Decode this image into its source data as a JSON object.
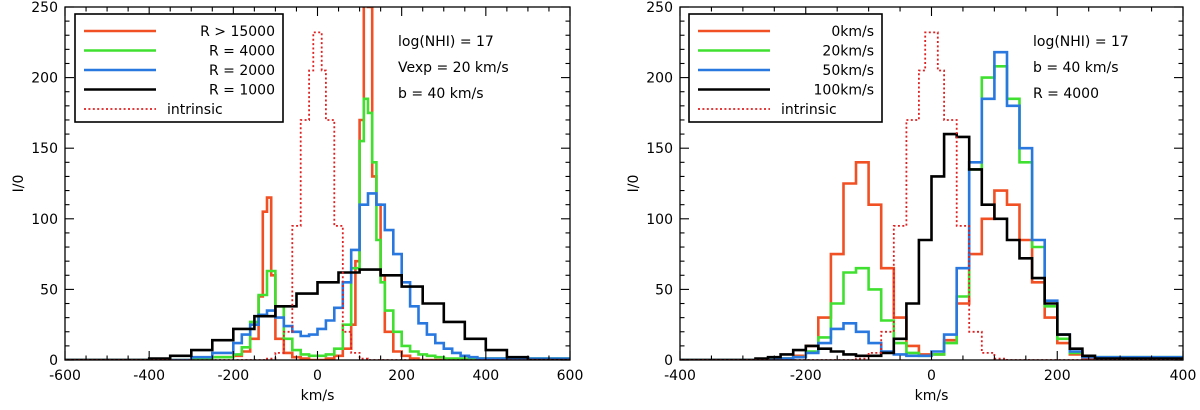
{
  "chart_data": [
    {
      "type": "line",
      "step": true,
      "xlabel": "km/s",
      "ylabel": "I/0",
      "xlim": [
        -600,
        600
      ],
      "ylim": [
        0,
        250
      ],
      "xticks": [
        -600,
        -400,
        -200,
        0,
        200,
        400,
        600
      ],
      "yticks": [
        0,
        50,
        100,
        150,
        200,
        250
      ],
      "xtick_labels": [
        "-600",
        "-400",
        "-200",
        "0",
        "200",
        "400",
        "600"
      ],
      "ytick_labels": [
        "0",
        "50",
        "100",
        "150",
        "200",
        "250"
      ],
      "legend_position": "top-left",
      "annotations": [
        "log(NHI) = 17",
        "Vexp = 20 km/s",
        "b = 40 km/s"
      ],
      "series": [
        {
          "name": "R > 15000",
          "color": "#f05024",
          "style": "solid",
          "x": [
            -600,
            -400,
            -300,
            -250,
            -200,
            -180,
            -160,
            -140,
            -130,
            -120,
            -110,
            -100,
            -80,
            -60,
            -40,
            -20,
            0,
            20,
            40,
            60,
            80,
            90,
            100,
            110,
            120,
            130,
            140,
            150,
            160,
            180,
            200,
            220,
            240,
            400,
            600
          ],
          "y": [
            0,
            0,
            1,
            2,
            3,
            6,
            15,
            45,
            105,
            115,
            60,
            15,
            5,
            2,
            1,
            0,
            0,
            1,
            3,
            8,
            25,
            70,
            170,
            265,
            250,
            130,
            110,
            60,
            20,
            6,
            3,
            1,
            0,
            0,
            0
          ]
        },
        {
          "name": "R = 4000",
          "color": "#40e030",
          "style": "solid",
          "x": [
            -600,
            -400,
            -300,
            -250,
            -200,
            -180,
            -160,
            -140,
            -120,
            -100,
            -80,
            -60,
            -40,
            -20,
            0,
            20,
            40,
            60,
            80,
            100,
            110,
            120,
            130,
            140,
            150,
            160,
            180,
            200,
            220,
            240,
            260,
            280,
            300,
            600
          ],
          "y": [
            0,
            0,
            1,
            2,
            4,
            9,
            27,
            46,
            63,
            38,
            15,
            7,
            4,
            3,
            3,
            4,
            8,
            25,
            65,
            155,
            185,
            175,
            140,
            85,
            55,
            35,
            20,
            10,
            6,
            4,
            3,
            2,
            1,
            0
          ]
        },
        {
          "name": "R = 2000",
          "color": "#2878e0",
          "style": "solid",
          "x": [
            -600,
            -400,
            -300,
            -250,
            -200,
            -180,
            -160,
            -140,
            -120,
            -100,
            -80,
            -60,
            -40,
            -20,
            0,
            20,
            40,
            60,
            80,
            100,
            120,
            140,
            160,
            180,
            200,
            220,
            240,
            260,
            280,
            300,
            320,
            340,
            360,
            380,
            600
          ],
          "y": [
            0,
            0,
            2,
            5,
            12,
            18,
            25,
            32,
            35,
            30,
            24,
            20,
            17,
            18,
            22,
            28,
            37,
            55,
            78,
            110,
            118,
            110,
            92,
            75,
            55,
            38,
            26,
            18,
            12,
            8,
            5,
            3,
            2,
            1,
            0
          ]
        },
        {
          "name": "R = 1000",
          "color": "#000000",
          "style": "solid",
          "x": [
            -600,
            -400,
            -350,
            -300,
            -250,
            -200,
            -150,
            -100,
            -50,
            0,
            50,
            100,
            150,
            200,
            250,
            300,
            350,
            400,
            450,
            500,
            600
          ],
          "y": [
            0,
            1,
            3,
            7,
            14,
            22,
            31,
            38,
            47,
            55,
            62,
            64,
            60,
            52,
            40,
            27,
            15,
            7,
            2,
            0,
            0
          ]
        },
        {
          "name": "intrinsic",
          "color": "#e02020",
          "style": "dotted",
          "x": [
            -600,
            -140,
            -120,
            -100,
            -80,
            -60,
            -40,
            -20,
            -10,
            0,
            10,
            20,
            40,
            60,
            80,
            100,
            120,
            140,
            600
          ],
          "y": [
            0,
            0,
            1,
            5,
            20,
            95,
            170,
            205,
            232,
            232,
            205,
            170,
            95,
            20,
            5,
            1,
            0,
            0,
            0
          ]
        }
      ]
    },
    {
      "type": "line",
      "step": true,
      "xlabel": "km/s",
      "ylabel": "I/0",
      "xlim": [
        -400,
        400
      ],
      "ylim": [
        0,
        250
      ],
      "xticks": [
        -400,
        -200,
        0,
        200,
        400
      ],
      "yticks": [
        0,
        50,
        100,
        150,
        200,
        250
      ],
      "xtick_labels": [
        "-400",
        "-200",
        "0",
        "200",
        "400"
      ],
      "ytick_labels": [
        "0",
        "50",
        "100",
        "150",
        "200",
        "250"
      ],
      "legend_position": "top-left",
      "annotations": [
        "log(NHI) = 17",
        "b = 40 km/s",
        "R = 4000"
      ],
      "series": [
        {
          "name": "0km/s",
          "color": "#f05024",
          "style": "solid",
          "x": [
            -400,
            -250,
            -220,
            -200,
            -180,
            -160,
            -140,
            -120,
            -100,
            -80,
            -60,
            -40,
            -20,
            0,
            20,
            40,
            60,
            80,
            100,
            120,
            140,
            160,
            180,
            200,
            220,
            240,
            400
          ],
          "y": [
            0,
            1,
            3,
            10,
            30,
            75,
            125,
            140,
            110,
            65,
            30,
            10,
            4,
            4,
            14,
            40,
            75,
            100,
            120,
            110,
            85,
            55,
            30,
            12,
            4,
            1,
            0
          ]
        },
        {
          "name": "20km/s",
          "color": "#40e030",
          "style": "solid",
          "x": [
            -400,
            -250,
            -220,
            -200,
            -180,
            -160,
            -140,
            -120,
            -100,
            -80,
            -60,
            -40,
            -20,
            0,
            20,
            40,
            60,
            80,
            100,
            120,
            140,
            160,
            180,
            200,
            220,
            240,
            400
          ],
          "y": [
            0,
            1,
            2,
            6,
            16,
            40,
            62,
            65,
            50,
            28,
            12,
            5,
            3,
            4,
            12,
            45,
            135,
            200,
            208,
            185,
            140,
            80,
            38,
            15,
            5,
            2,
            0
          ]
        },
        {
          "name": "50km/s",
          "color": "#2878e0",
          "style": "solid",
          "x": [
            -400,
            -250,
            -220,
            -200,
            -180,
            -160,
            -140,
            -120,
            -100,
            -80,
            -60,
            -40,
            -20,
            0,
            20,
            40,
            60,
            80,
            100,
            120,
            140,
            160,
            180,
            200,
            220,
            240,
            400
          ],
          "y": [
            0,
            1,
            2,
            5,
            12,
            22,
            26,
            20,
            12,
            6,
            4,
            3,
            3,
            6,
            18,
            65,
            140,
            185,
            218,
            180,
            150,
            85,
            42,
            18,
            6,
            2,
            0
          ]
        },
        {
          "name": "100km/s",
          "color": "#000000",
          "style": "solid",
          "x": [
            -400,
            -280,
            -260,
            -240,
            -220,
            -200,
            -180,
            -160,
            -140,
            -120,
            -100,
            -80,
            -60,
            -40,
            -20,
            0,
            20,
            40,
            60,
            80,
            100,
            120,
            140,
            160,
            180,
            200,
            220,
            240,
            260,
            400
          ],
          "y": [
            0,
            1,
            2,
            4,
            7,
            10,
            8,
            6,
            4,
            3,
            3,
            5,
            15,
            40,
            85,
            130,
            160,
            158,
            135,
            110,
            100,
            85,
            72,
            58,
            40,
            18,
            8,
            3,
            1,
            0
          ]
        },
        {
          "name": "intrinsic",
          "color": "#e02020",
          "style": "dotted",
          "x": [
            -400,
            -140,
            -120,
            -100,
            -80,
            -60,
            -40,
            -20,
            -10,
            0,
            10,
            20,
            40,
            60,
            80,
            100,
            120,
            140,
            400
          ],
          "y": [
            0,
            0,
            1,
            5,
            20,
            95,
            170,
            205,
            232,
            232,
            205,
            170,
            95,
            20,
            5,
            1,
            0,
            0,
            0
          ]
        }
      ]
    }
  ]
}
